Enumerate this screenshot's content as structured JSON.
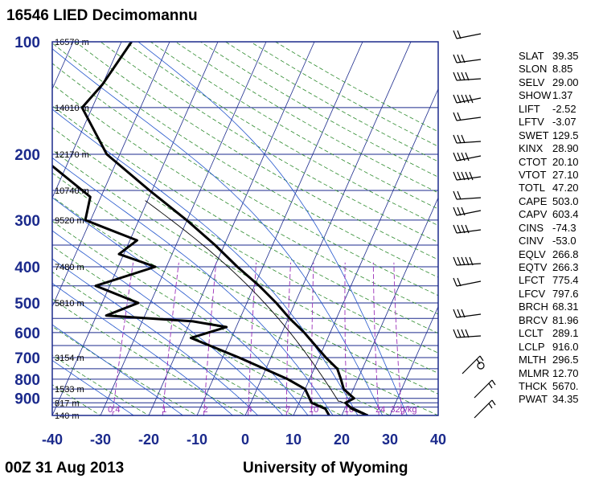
{
  "title": "16546 LIED Decimomannu",
  "footer_left": "00Z 31 Aug 2013",
  "footer_right": "University of Wyoming",
  "indices": [
    {
      "name": "SLAT",
      "value": "39.35"
    },
    {
      "name": "SLON",
      "value": "8.85"
    },
    {
      "name": "SELV",
      "value": "29.00"
    },
    {
      "name": "SHOW",
      "value": "1.37"
    },
    {
      "name": "LIFT",
      "value": "-2.52"
    },
    {
      "name": "LFTV",
      "value": "-3.07"
    },
    {
      "name": "SWET",
      "value": "129.5"
    },
    {
      "name": "KINX",
      "value": "28.90"
    },
    {
      "name": "CTOT",
      "value": "20.10"
    },
    {
      "name": "VTOT",
      "value": "27.10"
    },
    {
      "name": "TOTL",
      "value": "47.20"
    },
    {
      "name": "CAPE",
      "value": "503.0"
    },
    {
      "name": "CAPV",
      "value": "603.4"
    },
    {
      "name": "CINS",
      "value": "-74.3"
    },
    {
      "name": "CINV",
      "value": "-53.0"
    },
    {
      "name": "EQLV",
      "value": "266.8"
    },
    {
      "name": "EQTV",
      "value": "266.3"
    },
    {
      "name": "LFCT",
      "value": "775.4"
    },
    {
      "name": "LFCV",
      "value": "797.6"
    },
    {
      "name": "BRCH",
      "value": "68.31"
    },
    {
      "name": "BRCV",
      "value": "81.96"
    },
    {
      "name": "LCLT",
      "value": "289.1"
    },
    {
      "name": "LCLP",
      "value": "916.0"
    },
    {
      "name": "MLTH",
      "value": "296.5"
    },
    {
      "name": "MLMR",
      "value": "12.70"
    },
    {
      "name": "THCK",
      "value": "5670."
    },
    {
      "name": "PWAT",
      "value": "34.35"
    }
  ],
  "colors": {
    "axis": "#1b2a8c",
    "isobar": "#1b2a8c",
    "isotherm": "#1b2a8c",
    "dry_adiabat": "#2e8b2e",
    "moist_adiabat": "#2255cc",
    "mixing_ratio": "#9a2fb8",
    "sounding": "#000000"
  },
  "chart_data": {
    "type": "skew-t log-p",
    "title": "16546 LIED Decimomannu",
    "y_axis": {
      "scale": "log",
      "range": [
        1000,
        100
      ],
      "ticks": [
        "100",
        "200",
        "300",
        "400",
        "500",
        "600",
        "700",
        "800",
        "900"
      ]
    },
    "x_axis": {
      "range": [
        -40,
        40
      ],
      "ticks": [
        "-40",
        "-30",
        "-20",
        "-10",
        "0",
        "10",
        "20",
        "30",
        "40"
      ]
    },
    "grid": true,
    "isobar_lines": [
      100,
      150,
      200,
      250,
      300,
      350,
      400,
      450,
      500,
      550,
      600,
      650,
      700,
      750,
      800,
      850,
      900,
      925,
      950,
      1000
    ],
    "height_labels": [
      {
        "label": "16570 m",
        "p": 100
      },
      {
        "label": "14010 m",
        "p": 150
      },
      {
        "label": "12170 m",
        "p": 200
      },
      {
        "label": "10740 m",
        "p": 250
      },
      {
        "label": "9520 m",
        "p": 300
      },
      {
        "label": "7480 m",
        "p": 400
      },
      {
        "label": "5810 m",
        "p": 500
      },
      {
        "label": "3154 m",
        "p": 700
      },
      {
        "label": "1533 m",
        "p": 850
      },
      {
        "label": "817 m",
        "p": 925
      },
      {
        "label": "140 m",
        "p": 1000
      }
    ],
    "mixing_ratio_labels": [
      "0.4",
      "1",
      "2",
      "4",
      "7",
      "10",
      "16",
      "24",
      "32"
    ],
    "mixing_ratio_unit": "g/kg",
    "series": [
      {
        "points": [
          {
            "p": 1000,
            "t": 25.4
          },
          {
            "p": 960,
            "t": 21.5
          },
          {
            "p": 925,
            "t": 19.6
          },
          {
            "p": 900,
            "t": 21.0
          },
          {
            "p": 850,
            "t": 18.0
          },
          {
            "p": 800,
            "t": 16.5
          },
          {
            "p": 750,
            "t": 14.8
          },
          {
            "p": 700,
            "t": 11.4
          },
          {
            "p": 600,
            "t": 4.6
          },
          {
            "p": 550,
            "t": 0.3
          },
          {
            "p": 500,
            "t": -3.9
          },
          {
            "p": 450,
            "t": -9.0
          },
          {
            "p": 400,
            "t": -15.3
          },
          {
            "p": 350,
            "t": -21.9
          },
          {
            "p": 300,
            "t": -30.1
          },
          {
            "p": 250,
            "t": -40.5
          },
          {
            "p": 200,
            "t": -52.7
          },
          {
            "p": 150,
            "t": -62.1
          },
          {
            "p": 130,
            "t": -60.0
          },
          {
            "p": 100,
            "t": -57.9
          }
        ]
      },
      {
        "points": [
          {
            "p": 1000,
            "t": 17.4
          },
          {
            "p": 960,
            "t": 16.0
          },
          {
            "p": 925,
            "t": 12.6
          },
          {
            "p": 850,
            "t": 10.0
          },
          {
            "p": 800,
            "t": 5.5
          },
          {
            "p": 700,
            "t": -6.6
          },
          {
            "p": 620,
            "t": -18.4
          },
          {
            "p": 580,
            "t": -12.0
          },
          {
            "p": 560,
            "t": -19.5
          },
          {
            "p": 540,
            "t": -38.0
          },
          {
            "p": 500,
            "t": -32.5
          },
          {
            "p": 450,
            "t": -42.9
          },
          {
            "p": 400,
            "t": -32.3
          },
          {
            "p": 370,
            "t": -41.0
          },
          {
            "p": 340,
            "t": -38.5
          },
          {
            "p": 300,
            "t": -51.1
          },
          {
            "p": 260,
            "t": -52.2
          },
          {
            "p": 200,
            "t": -67.0
          },
          {
            "p": 150,
            "t": -85.0
          },
          {
            "p": 130,
            "t": -82.0
          },
          {
            "p": 100,
            "t": -88.0
          }
        ]
      }
    ]
  }
}
